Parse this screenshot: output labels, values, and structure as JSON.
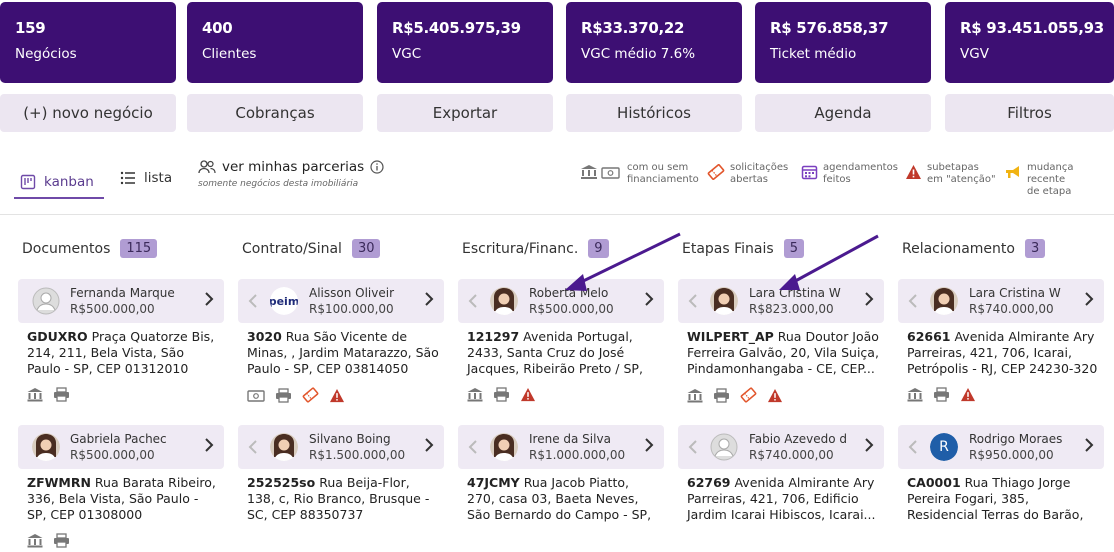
{
  "stats": [
    {
      "value": "159",
      "label": "Negócios"
    },
    {
      "value": "400",
      "label": "Clientes"
    },
    {
      "value": "R$5.405.975,39",
      "label": "VGC"
    },
    {
      "value": "R$33.370,22",
      "label": "VGC médio 7.6%"
    },
    {
      "value": "R$ 576.858,37",
      "label": "Ticket médio"
    },
    {
      "value": "R$ 93.451.055,93",
      "label": "VGV"
    }
  ],
  "actions": [
    "(+) novo negócio",
    "Cobranças",
    "Exportar",
    "Históricos",
    "Agenda",
    "Filtros"
  ],
  "views": {
    "kanban": "kanban",
    "lista": "lista"
  },
  "parcerias": {
    "title": "ver minhas parcerias",
    "subtitle": "somente negócios desta imobiliária"
  },
  "legend": [
    {
      "icon": "bank-money-icon",
      "text1": "com ou sem",
      "text2": "financiamento"
    },
    {
      "icon": "ticket-icon",
      "text1": "solicitações",
      "text2": "abertas"
    },
    {
      "icon": "calendar-icon",
      "text1": "agendamentos",
      "text2": "feitos"
    },
    {
      "icon": "warning-icon",
      "text1": "subetapas",
      "text2": "em \"atenção\""
    },
    {
      "icon": "megaphone-icon",
      "text1": "mudança recente",
      "text2": "de etapa"
    }
  ],
  "columns": [
    {
      "title": "Documentos",
      "count": "115",
      "cards": [
        {
          "name": "Fernanda Marque",
          "price": "R$500.000,00",
          "code": "GDUXRO",
          "address": "Praça Quatorze Bis, 214, 211, Bela Vista, São Paulo - SP, CEP 01312010",
          "avatar": "placeholder"
        },
        {
          "name": "Gabriela Pachec",
          "price": "R$500.000,00",
          "code": "ZFWMRN",
          "address": "Rua Barata Ribeiro, 336, Bela Vista, São Paulo - SP, CEP 01308000",
          "avatar": "photo"
        }
      ]
    },
    {
      "title": "Contrato/Sinal",
      "count": "30",
      "cards": [
        {
          "name": "Alisson Oliveir",
          "price": "R$100.000,00",
          "code": "3020",
          "address": "Rua São Vicente de Minas, , Jardim Matarazzo, São Paulo - SP, CEP 03814050",
          "avatar": "logo",
          "logo_text": "peim"
        },
        {
          "name": "Silvano Boing",
          "price": "R$1.500.000,00",
          "code": "252525so",
          "address": "Rua Beija-Flor, 138, c, Rio Branco, Brusque - SC, CEP 88350737",
          "avatar": "photo"
        }
      ]
    },
    {
      "title": "Escritura/Financ.",
      "count": "9",
      "cards": [
        {
          "name": "Roberta Melo",
          "price": "R$500.000,00",
          "code": "121297",
          "address": "Avenida Portugal, 2433, Santa Cruz do José Jacques, Ribeirão Preto / SP, CEP...",
          "avatar": "photo"
        },
        {
          "name": "Irene da Silva",
          "price": "R$1.000.000,00",
          "code": "47JCMY",
          "address": "Rua Jacob Piatto, 270, casa 03, Baeta Neves, São Bernardo do Campo - SP, CEP...",
          "avatar": "photo"
        }
      ]
    },
    {
      "title": "Etapas Finais",
      "count": "5",
      "cards": [
        {
          "name": "Lara Cristina W",
          "price": "R$823.000,00",
          "code": "WILPERT_AP",
          "address": "Rua Doutor João Ferreira Galvão, 20, Vila Suiça, Pindamonhangaba - CE, CEP...",
          "avatar": "photo"
        },
        {
          "name": "Fabio Azevedo d",
          "price": "R$740.000,00",
          "code": "62769",
          "address": "Avenida Almirante Ary Parreiras, 421, 706, Edificio Jardim Icarai Hibiscos, Icarai...",
          "avatar": "placeholder"
        }
      ]
    },
    {
      "title": "Relacionamento",
      "count": "3",
      "cards": [
        {
          "name": "Lara Cristina W",
          "price": "R$740.000,00",
          "code": "62661",
          "address": "Avenida Almirante Ary Parreiras, 421, 706, Icarai, Petrópolis - RJ, CEP 24230-320",
          "avatar": "photo"
        },
        {
          "name": "Rodrigo Moraes",
          "price": "R$950.000,00",
          "code": "CA0001",
          "address": "Rua Thiago Jorge Pereira Fogari, 385, Residencial Terras do Barão, Campinas -...",
          "avatar": "initial",
          "initial": "R"
        }
      ]
    }
  ]
}
